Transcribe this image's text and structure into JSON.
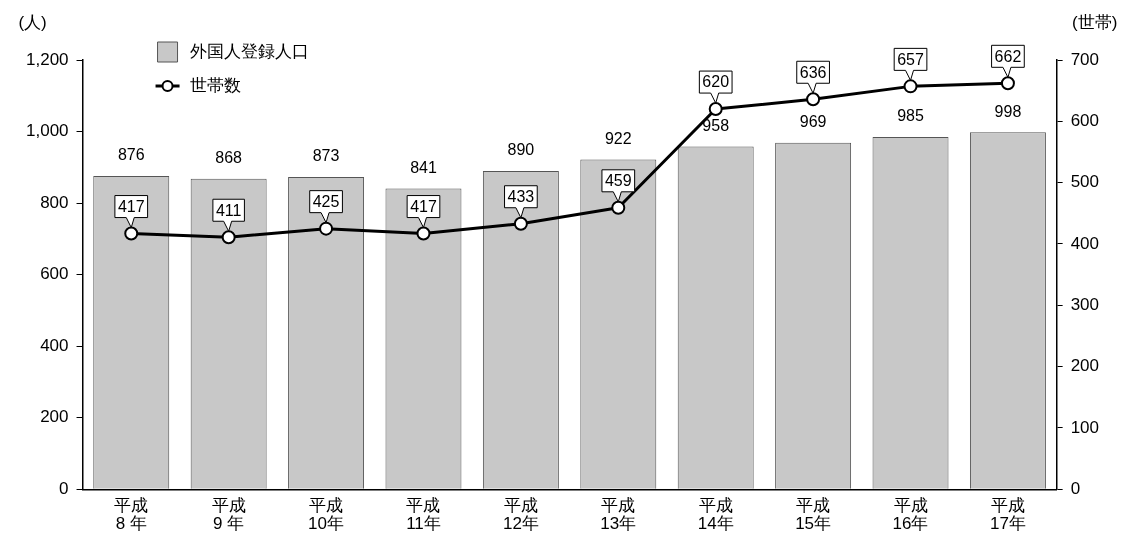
{
  "chart_data": {
    "type": "bar",
    "categories": [
      "平成\n8 年",
      "平成\n9 年",
      "平成\n10年",
      "平成\n11年",
      "平成\n12年",
      "平成\n13年",
      "平成\n14年",
      "平成\n15年",
      "平成\n16年",
      "平成\n17年"
    ],
    "series": [
      {
        "name": "外国人登録人口",
        "color": "#c8c8c8",
        "values": [
          876,
          868,
          873,
          841,
          890,
          922,
          958,
          969,
          985,
          998
        ]
      },
      {
        "name": "世帯数",
        "type": "line",
        "axis": "y2",
        "color": "#000000",
        "values": [
          417,
          411,
          425,
          417,
          433,
          459,
          620,
          636,
          657,
          662
        ]
      }
    ],
    "ylabel": "(人)",
    "y2label": "(世帯)",
    "ylim": [
      0,
      1200
    ],
    "yticks": [
      0,
      200,
      400,
      600,
      800,
      {
        "value": 1000,
        "label": "1,000"
      },
      {
        "value": 1200,
        "label": "1,200"
      }
    ],
    "y2lim": [
      0,
      700
    ],
    "y2ticks": [
      0,
      100,
      200,
      300,
      400,
      500,
      600,
      700
    ],
    "grid": false,
    "legend": "top left",
    "marker": "circle",
    "data_labels": true
  }
}
